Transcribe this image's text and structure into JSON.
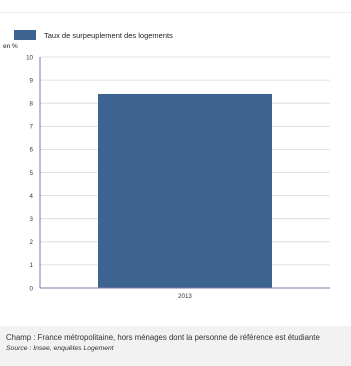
{
  "colors": {
    "bar": "#3d6491",
    "axis": "#7a7aa8",
    "grid": "#d8d8d8",
    "footer_bg": "#f2f2f2"
  },
  "chart_data": {
    "type": "bar",
    "categories": [
      "2013"
    ],
    "series": [
      {
        "name": "Taux de surpeuplement des logements",
        "values": [
          8.4
        ]
      }
    ],
    "ylabel": "en %",
    "ylim": [
      0,
      10
    ],
    "yticks": [
      0,
      1,
      2,
      3,
      4,
      5,
      6,
      7,
      8,
      9,
      10
    ],
    "grid": true,
    "legend": "top-left"
  },
  "footer": {
    "champ": "Champ : France métropolitaine, hors ménages dont la personne de référence est étudiante",
    "source": "Source : Insee, enquêtes Logement"
  }
}
